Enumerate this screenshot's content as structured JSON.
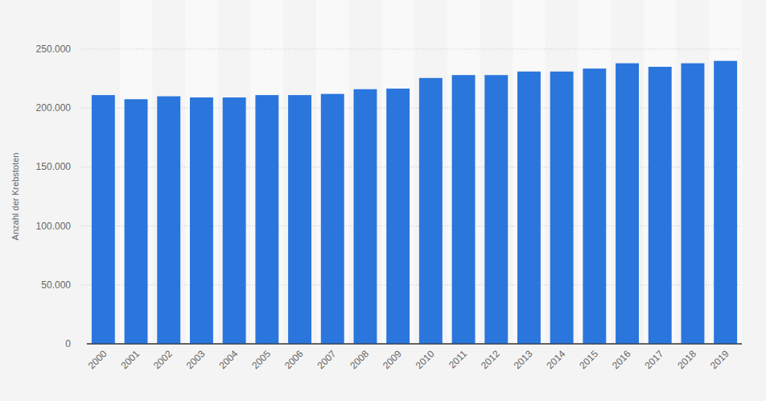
{
  "chart_data": {
    "type": "bar",
    "y_label": "Anzahl der Krebstoten",
    "categories": [
      "2000",
      "2001",
      "2002",
      "2003",
      "2004",
      "2005",
      "2006",
      "2007",
      "2008",
      "2009",
      "2010",
      "2011",
      "2012",
      "2013",
      "2014",
      "2015",
      "2016",
      "2017",
      "2018",
      "2019"
    ],
    "values": [
      211000,
      207500,
      210000,
      209000,
      209000,
      211000,
      211000,
      212000,
      216000,
      216500,
      225500,
      228000,
      228000,
      231000,
      231000,
      233500,
      238000,
      235000,
      238000,
      240000
    ],
    "color": "#2a76dd",
    "ylim": [
      0,
      250000
    ],
    "yticks": [
      0,
      {
        "value": 50000,
        "label": "50.000"
      },
      {
        "value": 100000,
        "label": "100.000"
      },
      {
        "value": 150000,
        "label": "150.000"
      },
      {
        "value": 200000,
        "label": "200.000"
      },
      {
        "value": 250000,
        "label": "250.000"
      }
    ],
    "grid": true
  }
}
